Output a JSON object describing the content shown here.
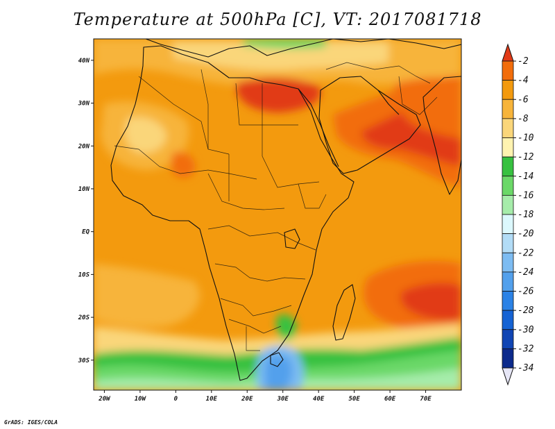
{
  "title": "Temperature at 500hPa [C], VT: 2017081718",
  "credit": "GrADS: IGES/COLA",
  "chart_data": {
    "type": "heatmap",
    "title": "Temperature at 500hPa [C], VT: 2017081718",
    "variable_units": "C",
    "x_axis": {
      "range": [
        -23,
        80
      ],
      "ticks": [
        {
          "value": -20,
          "label": "20W"
        },
        {
          "value": -10,
          "label": "10W"
        },
        {
          "value": 0,
          "label": "0"
        },
        {
          "value": 10,
          "label": "10E"
        },
        {
          "value": 20,
          "label": "20E"
        },
        {
          "value": 30,
          "label": "30E"
        },
        {
          "value": 40,
          "label": "40E"
        },
        {
          "value": 50,
          "label": "50E"
        },
        {
          "value": 60,
          "label": "60E"
        },
        {
          "value": 70,
          "label": "70E"
        }
      ]
    },
    "y_axis": {
      "range": [
        -37,
        45
      ],
      "ticks": [
        {
          "value": 40,
          "label": "40N"
        },
        {
          "value": 30,
          "label": "30N"
        },
        {
          "value": 20,
          "label": "20N"
        },
        {
          "value": 10,
          "label": "10N"
        },
        {
          "value": 0,
          "label": "EQ"
        },
        {
          "value": -10,
          "label": "10S"
        },
        {
          "value": -20,
          "label": "20S"
        },
        {
          "value": -30,
          "label": "30S"
        }
      ]
    },
    "colorbar": {
      "placement": "right",
      "labels": [
        "-2",
        "-4",
        "-6",
        "-8",
        "-10",
        "-12",
        "-14",
        "-16",
        "-18",
        "-20",
        "-22",
        "-24",
        "-26",
        "-28",
        "-30",
        "-32",
        "-34"
      ],
      "colors": [
        "#e13a17",
        "#f26d0b",
        "#f39a0e",
        "#f7b43a",
        "#fad67a",
        "#fff3b0",
        "#37c140",
        "#6bd868",
        "#a6ecaa",
        "#dcf8fd",
        "#b2dcf6",
        "#7dbcf2",
        "#52a0ec",
        "#2b82e6",
        "#1563d4",
        "#1045b4",
        "#0c2a8c",
        "#08136a",
        "#e6e6f6"
      ]
    },
    "grid": false,
    "coastlines": true
  }
}
